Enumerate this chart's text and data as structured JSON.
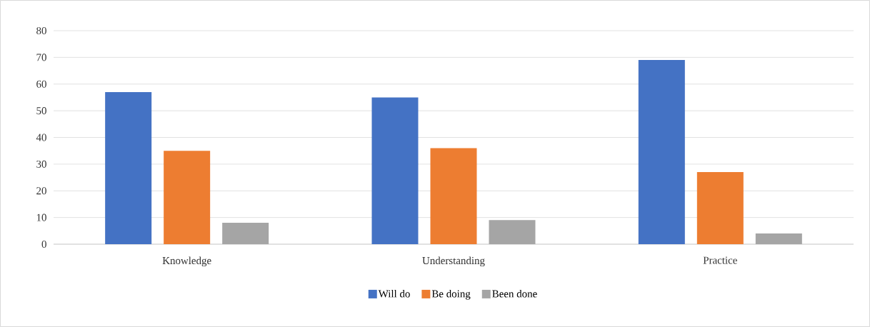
{
  "chart_data": {
    "type": "bar",
    "categories": [
      "Knowledge",
      "Understanding",
      "Practice"
    ],
    "series": [
      {
        "name": "Will do",
        "color": "#4472c4",
        "values": [
          57,
          55,
          69
        ]
      },
      {
        "name": "Be doing",
        "color": "#ed7d31",
        "values": [
          35,
          36,
          27
        ]
      },
      {
        "name": "Been done",
        "color": "#a5a5a5",
        "values": [
          8,
          9,
          4
        ]
      }
    ],
    "ylim": [
      0,
      80
    ],
    "yticks": [
      0,
      10,
      20,
      30,
      40,
      50,
      60,
      70,
      80
    ],
    "grid": "y",
    "legend": "bottom"
  }
}
